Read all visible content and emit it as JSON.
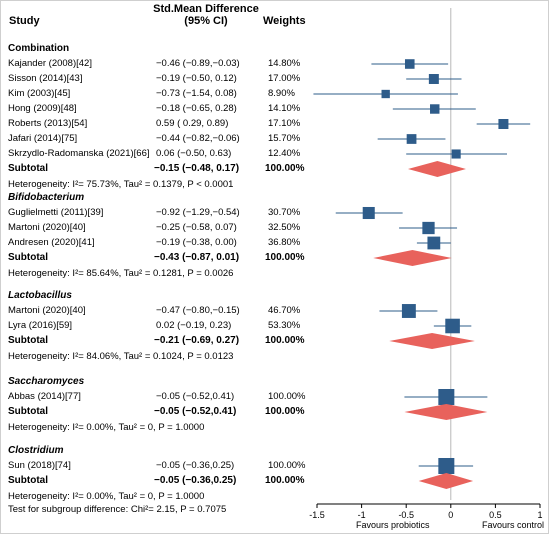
{
  "headers": {
    "study": "Study",
    "effect_line1": "Std.Mean Difference",
    "effect_line2": "(95% CI)",
    "weights": "Weights"
  },
  "chart_data": {
    "type": "forest",
    "xlim": [
      -1.5,
      1
    ],
    "xticks": [
      -1.5,
      -1,
      -0.5,
      0,
      0.5,
      1
    ],
    "xtick_labels": [
      "-1.5",
      "-1",
      "-0.5",
      "0",
      "0.5",
      "1"
    ],
    "xlabel_left": "Favours probiotics",
    "xlabel_right": "Favours control",
    "marker_color": "#2e5c8a",
    "diamond_color": "#e8625c",
    "groups": [
      {
        "name": "Combination",
        "italic": false,
        "studies": [
          {
            "label": "Kajander (2008)[42]",
            "ci_text": "−0.46 (−0.89,−0.03)",
            "weight": "14.80%",
            "est": -0.46,
            "lo": -0.89,
            "hi": -0.03,
            "w": 14.8
          },
          {
            "label": "Sisson (2014)[43]",
            "ci_text": "−0.19 (−0.50, 0.12)",
            "weight": "17.00%",
            "est": -0.19,
            "lo": -0.5,
            "hi": 0.12,
            "w": 17.0
          },
          {
            "label": "Kim (2003)[45]",
            "ci_text": "−0.73 (−1.54, 0.08)",
            "weight": "8.90%",
            "est": -0.73,
            "lo": -1.54,
            "hi": 0.08,
            "w": 8.9
          },
          {
            "label": "Hong (2009)[48]",
            "ci_text": "−0.18 (−0.65, 0.28)",
            "weight": "14.10%",
            "est": -0.18,
            "lo": -0.65,
            "hi": 0.28,
            "w": 14.1
          },
          {
            "label": "Roberts (2013)[54]",
            "ci_text": "0.59 ( 0.29, 0.89)",
            "weight": "17.10%",
            "est": 0.59,
            "lo": 0.29,
            "hi": 0.89,
            "w": 17.1
          },
          {
            "label": "Jafari (2014)[75]",
            "ci_text": "−0.44 (−0.82,−0.06)",
            "weight": "15.70%",
            "est": -0.44,
            "lo": -0.82,
            "hi": -0.06,
            "w": 15.7
          },
          {
            "label": "Skrzydlo-Radomanska (2021)[66]",
            "ci_text": "0.06 (−0.50, 0.63)",
            "weight": "12.40%",
            "est": 0.06,
            "lo": -0.5,
            "hi": 0.63,
            "w": 12.4
          }
        ],
        "subtotal": {
          "label": "Subtotal",
          "ci_text": "−0.15 (−0.48, 0.17)",
          "weight": "100.00%",
          "est": -0.15,
          "lo": -0.48,
          "hi": 0.17
        },
        "heterogeneity": "Heterogeneity: I²= 75.73%, Tau² = 0.1379, P < 0.0001"
      },
      {
        "name": "Bifidobacterium",
        "italic": true,
        "studies": [
          {
            "label": "Guglielmetti (2011)[39]",
            "ci_text": "−0.92 (−1.29,−0.54)",
            "weight": "30.70%",
            "est": -0.92,
            "lo": -1.29,
            "hi": -0.54,
            "w": 30.7
          },
          {
            "label": "Martoni (2020)[40]",
            "ci_text": "−0.25 (−0.58, 0.07)",
            "weight": "32.50%",
            "est": -0.25,
            "lo": -0.58,
            "hi": 0.07,
            "w": 32.5
          },
          {
            "label": "Andresen (2020)[41]",
            "ci_text": "−0.19 (−0.38, 0.00)",
            "weight": "36.80%",
            "est": -0.19,
            "lo": -0.38,
            "hi": 0.0,
            "w": 36.8
          }
        ],
        "subtotal": {
          "label": "Subtotal",
          "ci_text": "−0.43 (−0.87, 0.01)",
          "weight": "100.00%",
          "est": -0.43,
          "lo": -0.87,
          "hi": 0.01
        },
        "heterogeneity": "Heterogeneity: I²= 85.64%, Tau² = 0.1281, P = 0.0026"
      },
      {
        "name": "Lactobacillus",
        "italic": true,
        "studies": [
          {
            "label": "Martoni (2020)[40]",
            "ci_text": "−0.47 (−0.80,−0.15)",
            "weight": "46.70%",
            "est": -0.47,
            "lo": -0.8,
            "hi": -0.15,
            "w": 46.7
          },
          {
            "label": "Lyra (2016)[59]",
            "ci_text": "0.02 (−0.19, 0.23)",
            "weight": "53.30%",
            "est": 0.02,
            "lo": -0.19,
            "hi": 0.23,
            "w": 53.3
          }
        ],
        "subtotal": {
          "label": "Subtotal",
          "ci_text": "−0.21 (−0.69, 0.27)",
          "weight": "100.00%",
          "est": -0.21,
          "lo": -0.69,
          "hi": 0.27
        },
        "heterogeneity": "Heterogeneity: I²= 84.06%, Tau² = 0.1024, P = 0.0123"
      },
      {
        "name": "Saccharomyces",
        "italic": true,
        "studies": [
          {
            "label": "Abbas (2014)[77]",
            "ci_text": "−0.05 (−0.52,0.41)",
            "weight": "100.00%",
            "est": -0.05,
            "lo": -0.52,
            "hi": 0.41,
            "w": 100
          }
        ],
        "subtotal": {
          "label": "Subtotal",
          "ci_text": "−0.05 (−0.52,0.41)",
          "weight": "100.00%",
          "est": -0.05,
          "lo": -0.52,
          "hi": 0.41
        },
        "heterogeneity": "Heterogeneity: I²= 0.00%, Tau² = 0, P = 1.0000"
      },
      {
        "name": "Clostridium",
        "italic": true,
        "studies": [
          {
            "label": "Sun (2018)[74]",
            "ci_text": "−0.05 (−0.36,0.25)",
            "weight": "100.00%",
            "est": -0.05,
            "lo": -0.36,
            "hi": 0.25,
            "w": 100
          }
        ],
        "subtotal": {
          "label": "Subtotal",
          "ci_text": "−0.05 (−0.36,0.25)",
          "weight": "100.00%",
          "est": -0.05,
          "lo": -0.36,
          "hi": 0.25
        },
        "heterogeneity": "Heterogeneity: I²= 0.00%, Tau² = 0, P = 1.0000"
      }
    ],
    "subgroup_test": "Test for subgroup difference: Chi²= 2.15, P = 0.7075"
  }
}
